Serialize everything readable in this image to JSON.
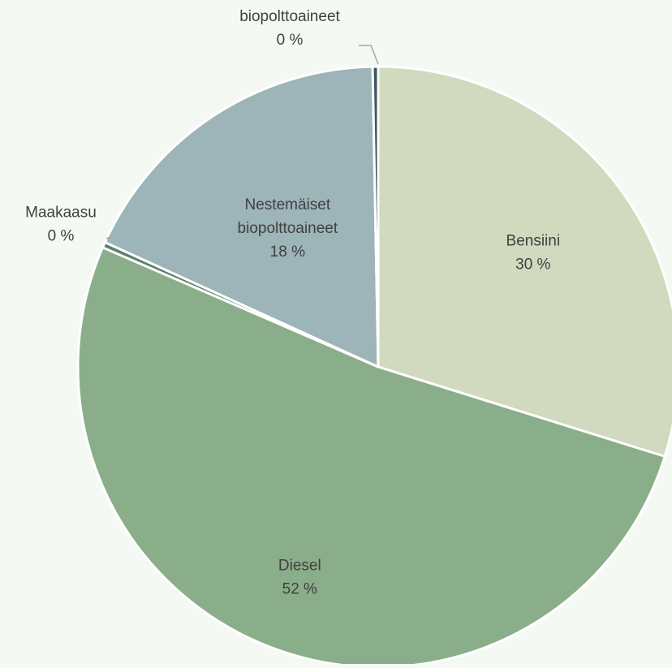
{
  "chart_data": {
    "type": "pie",
    "title": "",
    "slices": [
      {
        "label": "Bensiini",
        "value": 30,
        "value_label": "30 %",
        "color": "#d1d9be"
      },
      {
        "label": "Diesel",
        "value": 52,
        "value_label": "52 %",
        "color": "#8aae8a"
      },
      {
        "label": "Maakaasu",
        "value": 0.3,
        "value_label": "0 %",
        "color": "#5d7f6b"
      },
      {
        "label": "Nestemäiset biopolttoaineet",
        "value": 18,
        "value_label": "18 %",
        "color": "#9db4b8"
      },
      {
        "label": "Kaasumaiset biopolttoaineet",
        "value": 0.3,
        "value_label": "0 %",
        "color": "#3e5663"
      }
    ],
    "colors": {
      "background": "#f5f9f3",
      "separator": "#ffffff",
      "text": "#404040",
      "leader_line": "#a6a6a6"
    }
  }
}
